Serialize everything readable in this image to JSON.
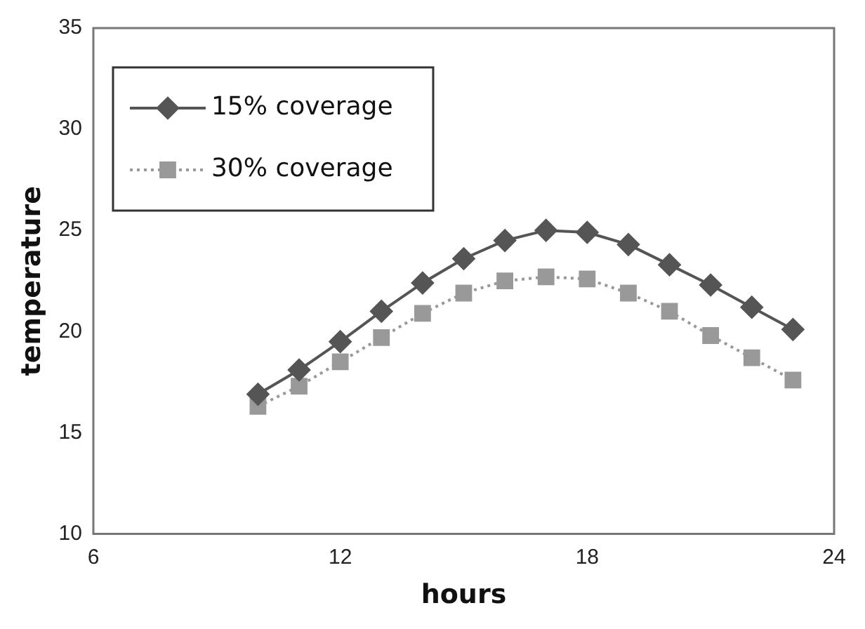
{
  "chart_data": {
    "type": "line",
    "xlabel": "hours",
    "ylabel": "temperature",
    "x": [
      10,
      11,
      12,
      13,
      14,
      15,
      16,
      17,
      18,
      19,
      20,
      21,
      22,
      23
    ],
    "series": [
      {
        "name": "15% coverage",
        "color": "#555555",
        "marker": "diamond",
        "line_style": "solid",
        "values": [
          16.9,
          18.1,
          19.5,
          21.0,
          22.4,
          23.6,
          24.5,
          25.0,
          24.9,
          24.3,
          23.3,
          22.3,
          21.2,
          20.1
        ]
      },
      {
        "name": "30% coverage",
        "color": "#999999",
        "marker": "square",
        "line_style": "dotted",
        "values": [
          16.3,
          17.3,
          18.5,
          19.7,
          20.9,
          21.9,
          22.5,
          22.7,
          22.6,
          21.9,
          21.0,
          19.8,
          18.7,
          17.6
        ]
      }
    ],
    "xlim": [
      6,
      24
    ],
    "xticks": [
      6,
      12,
      18,
      24
    ],
    "ylim": [
      10,
      35
    ],
    "yticks": [
      10,
      15,
      20,
      25,
      30,
      35
    ],
    "grid": false,
    "legend": "top left"
  }
}
